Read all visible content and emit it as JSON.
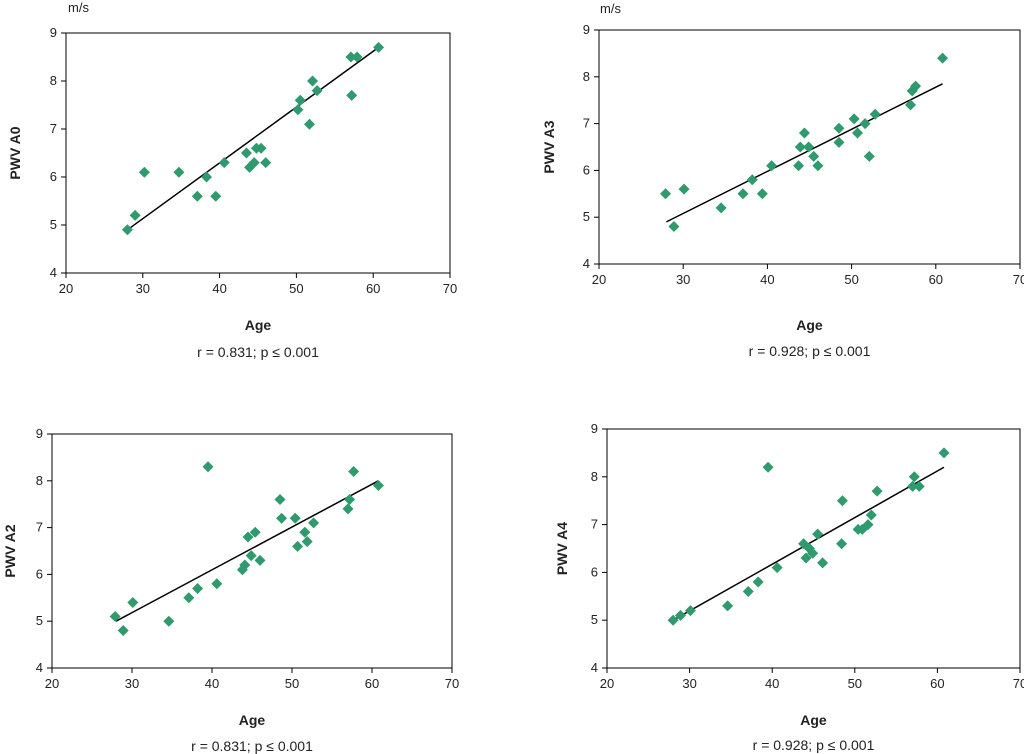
{
  "chart_data": [
    {
      "type": "scatter",
      "ylabel": "PWV A0",
      "unit": "m/s",
      "xlabel": "Age",
      "stat": "r = 0.831; p ≤ 0.001",
      "xlim": [
        20,
        70
      ],
      "ylim": [
        4,
        9
      ],
      "xticks": [
        "20",
        "30",
        "40",
        "50",
        "60",
        "70"
      ],
      "yticks": [
        "4",
        "5",
        "6",
        "7",
        "8",
        "9"
      ],
      "marker_color": "#2e9a6e",
      "line_color": "#000000",
      "points": [
        [
          28,
          4.9
        ],
        [
          29,
          5.2
        ],
        [
          30.2,
          6.1
        ],
        [
          34.7,
          6.1
        ],
        [
          37.1,
          5.6
        ],
        [
          38.3,
          6.0
        ],
        [
          39.5,
          5.6
        ],
        [
          40.6,
          6.3
        ],
        [
          43.5,
          6.5
        ],
        [
          43.9,
          6.2
        ],
        [
          44.5,
          6.3
        ],
        [
          44.8,
          6.6
        ],
        [
          45.4,
          6.6
        ],
        [
          46,
          6.3
        ],
        [
          50.2,
          7.4
        ],
        [
          50.5,
          7.6
        ],
        [
          51.7,
          7.1
        ],
        [
          52.1,
          8.0
        ],
        [
          52.7,
          7.8
        ],
        [
          57.2,
          7.7
        ],
        [
          57.1,
          8.5
        ],
        [
          57.9,
          8.5
        ],
        [
          60.7,
          8.7
        ]
      ],
      "trend": [
        [
          28,
          4.9
        ],
        [
          60.7,
          8.7
        ]
      ]
    },
    {
      "type": "scatter",
      "ylabel": "PWV A3",
      "unit": "m/s",
      "xlabel": "Age",
      "stat": "r = 0.928; p ≤ 0.001",
      "xlim": [
        20,
        70
      ],
      "ylim": [
        4,
        9
      ],
      "xticks": [
        "20",
        "30",
        "40",
        "50",
        "60",
        "70"
      ],
      "yticks": [
        "4",
        "5",
        "6",
        "7",
        "8",
        "9"
      ],
      "marker_color": "#2e9a6e",
      "line_color": "#000000",
      "points": [
        [
          27.9,
          5.5
        ],
        [
          28.9,
          4.8
        ],
        [
          30.1,
          5.6
        ],
        [
          34.5,
          5.2
        ],
        [
          37.1,
          5.5
        ],
        [
          38.2,
          5.8
        ],
        [
          39.4,
          5.5
        ],
        [
          40.5,
          6.1
        ],
        [
          43.7,
          6.1
        ],
        [
          43.9,
          6.5
        ],
        [
          44.4,
          6.8
        ],
        [
          44.9,
          6.5
        ],
        [
          45.5,
          6.3
        ],
        [
          46,
          6.1
        ],
        [
          48.5,
          6.6
        ],
        [
          48.5,
          6.9
        ],
        [
          50.3,
          7.1
        ],
        [
          50.7,
          6.8
        ],
        [
          51.6,
          7.0
        ],
        [
          52.1,
          6.3
        ],
        [
          52.8,
          7.2
        ],
        [
          57,
          7.4
        ],
        [
          57.2,
          7.7
        ],
        [
          57.6,
          7.8
        ],
        [
          60.8,
          8.4
        ]
      ],
      "trend": [
        [
          28,
          4.9
        ],
        [
          60.8,
          7.85
        ]
      ]
    },
    {
      "type": "scatter",
      "ylabel": "PWV A2",
      "unit": "",
      "xlabel": "Age",
      "stat": "r = 0.831; p ≤ 0.001",
      "xlim": [
        20,
        70
      ],
      "ylim": [
        4,
        9
      ],
      "xticks": [
        "20",
        "30",
        "40",
        "50",
        "60",
        "70"
      ],
      "yticks": [
        "4",
        "5",
        "6",
        "7",
        "8",
        "9"
      ],
      "marker_color": "#2e9a6e",
      "line_color": "#000000",
      "points": [
        [
          27.9,
          5.1
        ],
        [
          28.9,
          4.8
        ],
        [
          30.1,
          5.4
        ],
        [
          34.6,
          5.0
        ],
        [
          37.1,
          5.5
        ],
        [
          38.2,
          5.7
        ],
        [
          39.5,
          8.3
        ],
        [
          40.6,
          5.8
        ],
        [
          43.8,
          6.1
        ],
        [
          44.1,
          6.2
        ],
        [
          44.5,
          6.8
        ],
        [
          44.9,
          6.4
        ],
        [
          45.4,
          6.9
        ],
        [
          46,
          6.3
        ],
        [
          48.5,
          7.6
        ],
        [
          48.7,
          7.2
        ],
        [
          50.4,
          7.2
        ],
        [
          50.7,
          6.6
        ],
        [
          51.6,
          6.9
        ],
        [
          51.9,
          6.7
        ],
        [
          52.7,
          7.1
        ],
        [
          57,
          7.4
        ],
        [
          57.2,
          7.6
        ],
        [
          57.7,
          8.2
        ],
        [
          60.8,
          7.9
        ]
      ],
      "trend": [
        [
          28,
          5.0
        ],
        [
          60.8,
          8.0
        ]
      ]
    },
    {
      "type": "scatter",
      "ylabel": "PWV A4",
      "unit": "",
      "xlabel": "Age",
      "stat": "r = 0.928; p ≤ 0.001",
      "xlim": [
        20,
        70
      ],
      "ylim": [
        4,
        9
      ],
      "xticks": [
        "20",
        "30",
        "40",
        "50",
        "60",
        "70"
      ],
      "yticks": [
        "4",
        "5",
        "6",
        "7",
        "8",
        "9"
      ],
      "marker_color": "#2e9a6e",
      "line_color": "#000000",
      "points": [
        [
          28,
          5.0
        ],
        [
          28.9,
          5.1
        ],
        [
          30.1,
          5.2
        ],
        [
          34.6,
          5.3
        ],
        [
          37.1,
          5.6
        ],
        [
          38.3,
          5.8
        ],
        [
          39.5,
          8.2
        ],
        [
          40.6,
          6.1
        ],
        [
          43.8,
          6.6
        ],
        [
          44.1,
          6.3
        ],
        [
          44.5,
          6.5
        ],
        [
          44.9,
          6.4
        ],
        [
          45.5,
          6.8
        ],
        [
          46.1,
          6.2
        ],
        [
          48.4,
          6.6
        ],
        [
          48.5,
          7.5
        ],
        [
          50.4,
          6.9
        ],
        [
          50.9,
          6.9
        ],
        [
          51.6,
          7.0
        ],
        [
          52,
          7.2
        ],
        [
          52.7,
          7.7
        ],
        [
          57,
          7.8
        ],
        [
          57.2,
          8.0
        ],
        [
          57.8,
          7.8
        ],
        [
          60.8,
          8.5
        ]
      ],
      "trend": [
        [
          28,
          5.0
        ],
        [
          60.8,
          8.2
        ]
      ]
    }
  ]
}
